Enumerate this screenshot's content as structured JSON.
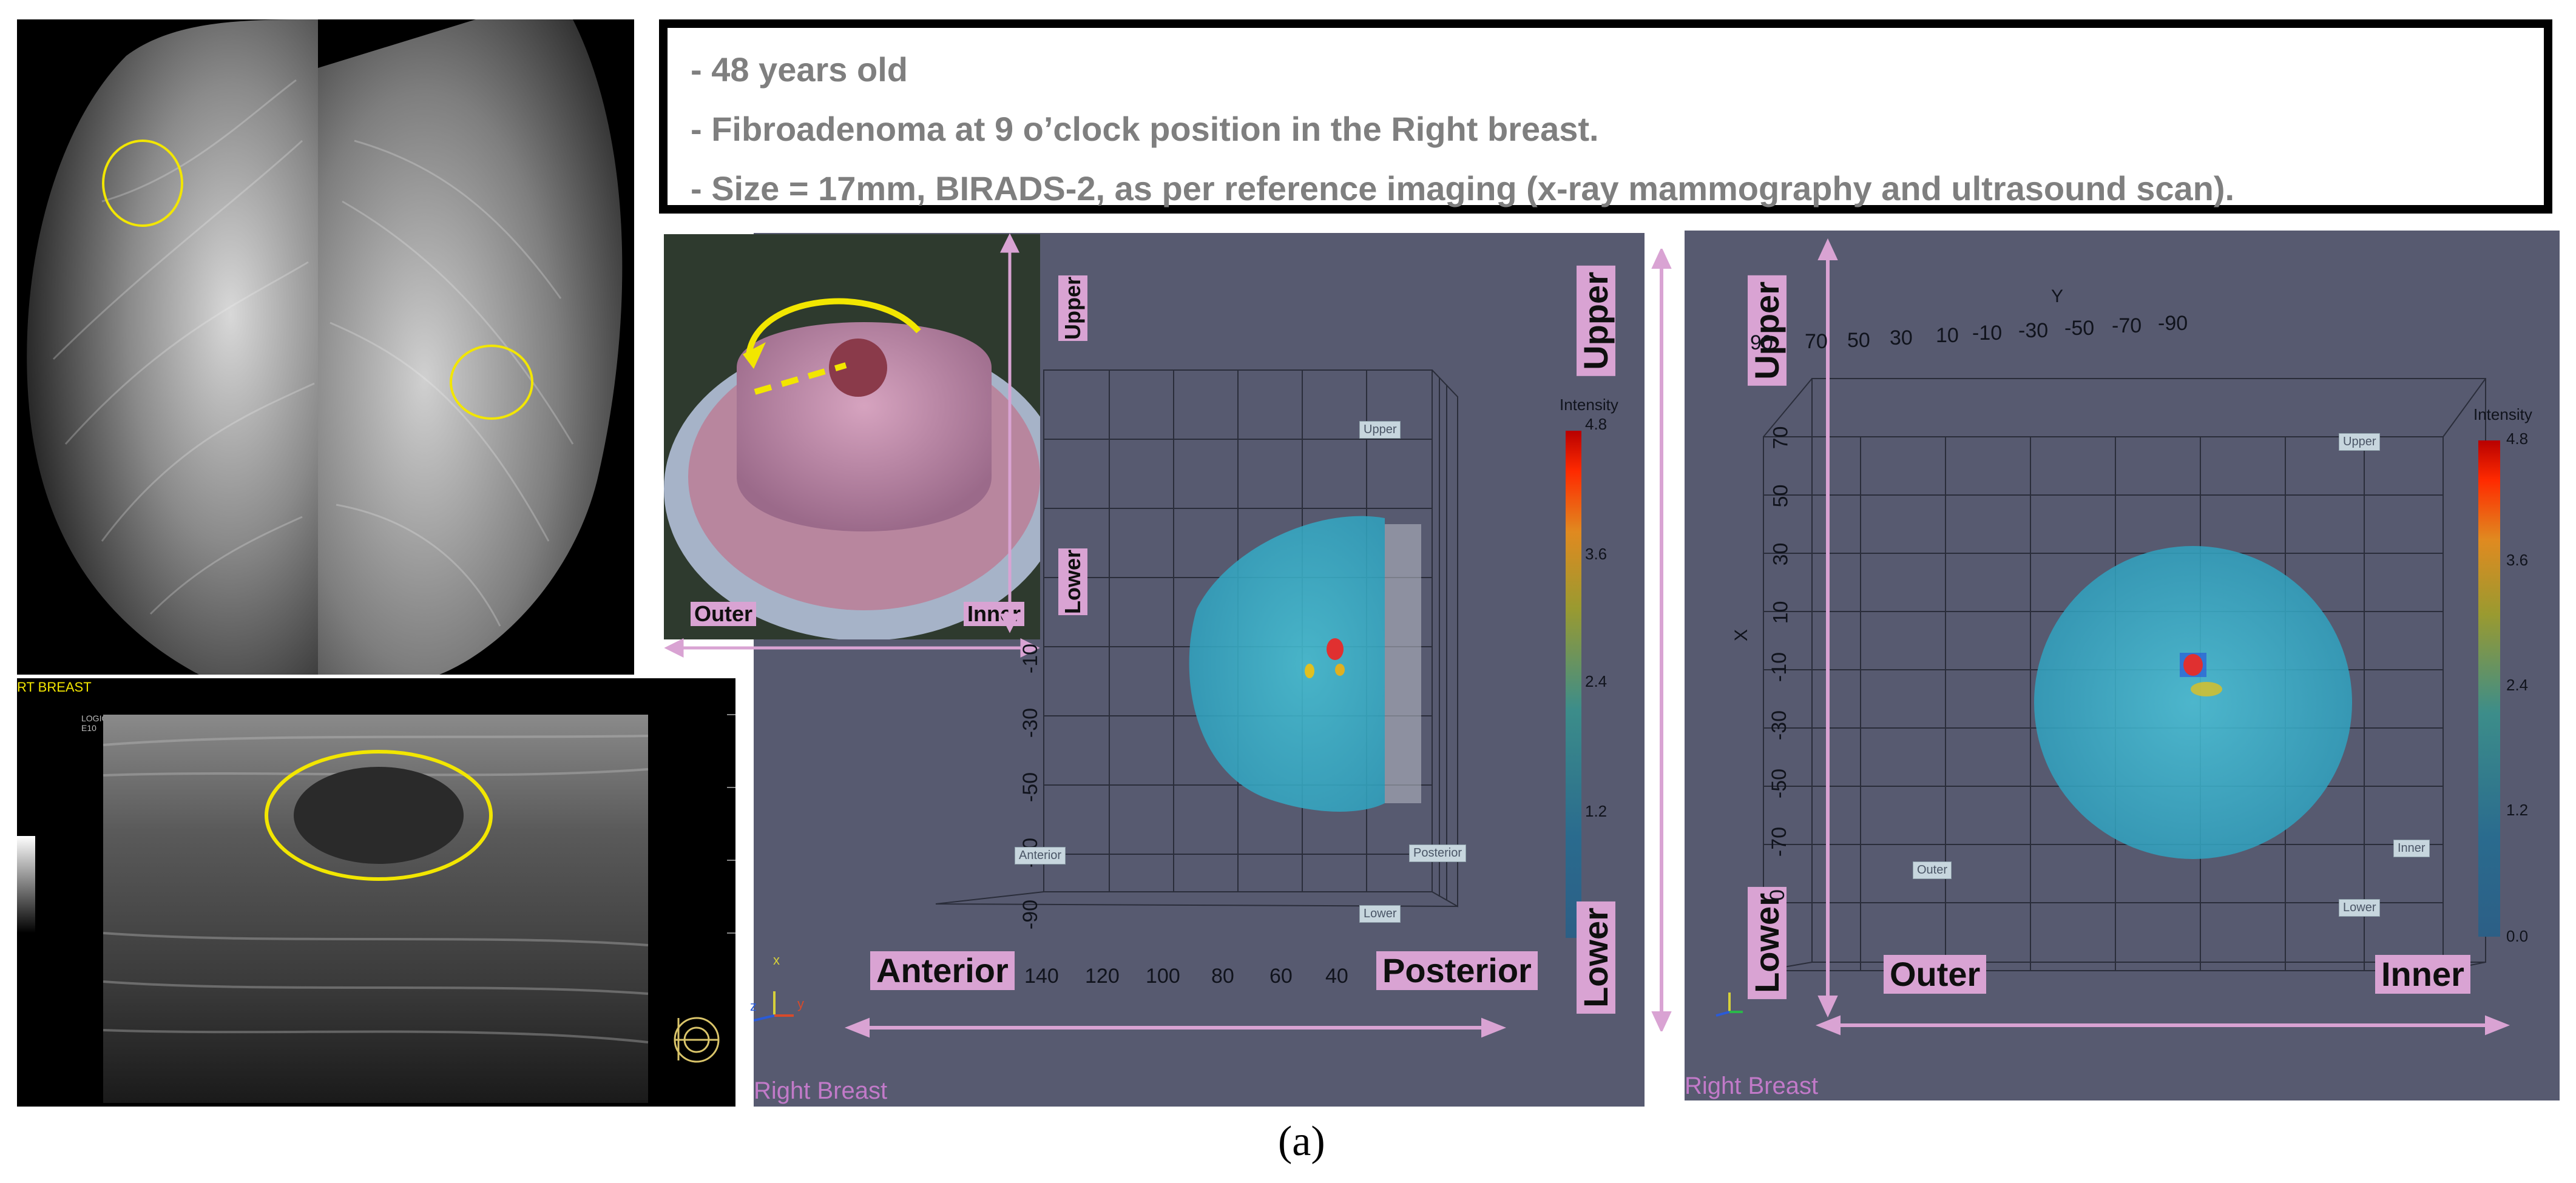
{
  "info": {
    "line1": "- 48 years old",
    "line2": "- Fibroadenoma at 9 o’clock position in the Right breast.",
    "line3": "- Size = 17mm, BIRADS-2, as per reference imaging (x-ray mammography and ultrasound scan)."
  },
  "ultrasound": {
    "label": "RT BREAST",
    "logo": "LOGIQ E10"
  },
  "inset": {
    "upper": "Upper",
    "lower": "Lower",
    "outer": "Outer",
    "inner": "Inner"
  },
  "view1": {
    "upper": "Upper",
    "lower": "Lower",
    "anterior": "Anterior",
    "posterior": "Posterior",
    "tag_upper": "Upper",
    "tag_lower": "Lower",
    "tag_anterior": "Anterior",
    "tag_posterior": "Posterior",
    "x_ticks": [
      "140",
      "120",
      "100",
      "80",
      "60",
      "40"
    ],
    "y_ticks": [
      "-10",
      "-30",
      "-50",
      "-70",
      "-90"
    ],
    "colorbar_title": "Intensity",
    "colorbar_ticks": [
      "4.8",
      "3.6",
      "2.4",
      "1.2"
    ],
    "axis_x": "x",
    "axis_y": "y",
    "axis_z": "z",
    "footer": "Right Breast"
  },
  "view2": {
    "upper": "Upper",
    "lower": "Lower",
    "outer": "Outer",
    "inner": "Inner",
    "tag_upper": "Upper",
    "tag_lower": "Lower",
    "tag_outer": "Outer",
    "tag_inner": "Inner",
    "y_axis_title": "Y",
    "x_axis_title": "X",
    "y_ticks": [
      "90",
      "70",
      "50",
      "30",
      "10",
      "-10",
      "-30",
      "-50",
      "-70",
      "-90"
    ],
    "x_ticks": [
      "70",
      "50",
      "30",
      "10",
      "-10",
      "-30",
      "-50",
      "-70"
    ],
    "x_tick_last": "0",
    "colorbar_title": "Intensity",
    "colorbar_ticks": [
      "4.8",
      "3.6",
      "2.4",
      "1.2",
      "0.0"
    ],
    "footer": "Right Breast"
  },
  "caption": "(a)",
  "colors": {
    "pink": "#d9a3d3",
    "slate": "#575a70",
    "annotation_yellow": "#f2e600"
  }
}
